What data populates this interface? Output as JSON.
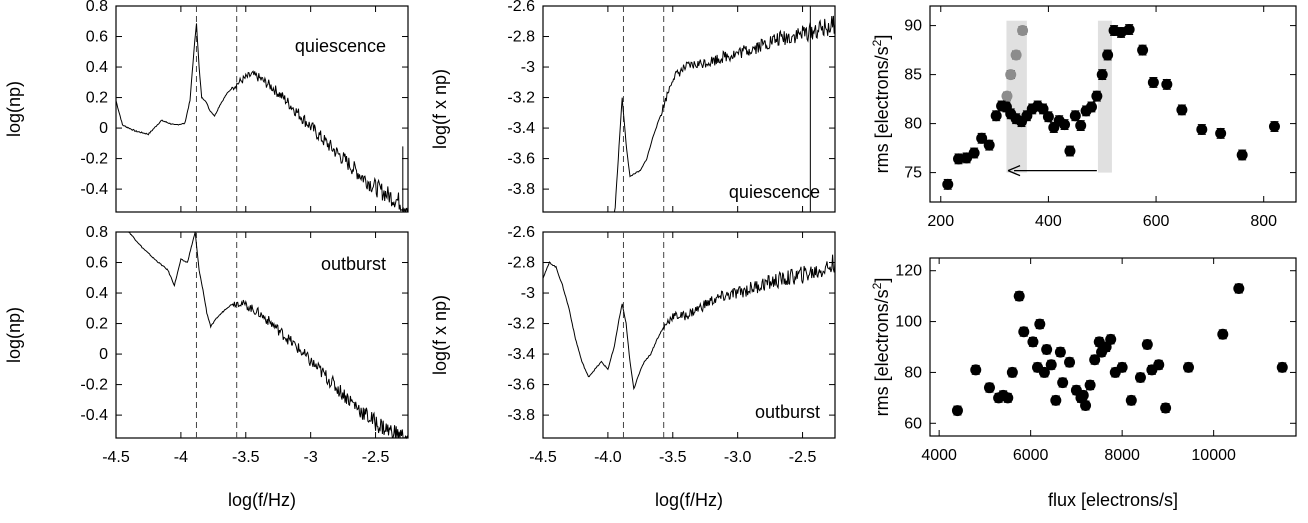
{
  "panels": {
    "a": {
      "label": "quiescence"
    },
    "b": {
      "label": "outburst"
    },
    "c": {
      "label": "quiescence"
    },
    "d": {
      "label": "outburst"
    }
  },
  "axes": {
    "left_ylabel_top": "log(np)",
    "left_ylabel_bottom": "log(np)",
    "left_xlabel": "log(f/Hz)",
    "mid_ylabel_top": "log(f x np)",
    "mid_ylabel_bottom": "log(f x np)",
    "mid_xlabel": "log(f/Hz)",
    "right_ylabel_top": "rms [electrons/s",
    "right_ylabel_bottom": "rms [electrons/s",
    "right_ylabel_sup": "2",
    "right_ylabel_close": "]",
    "right_xlabel": "flux [electrons/s]"
  },
  "ticks": {
    "left_x": [
      "-4.5",
      "-4",
      "-3.5",
      "-3",
      "-2.5"
    ],
    "left_y_top": [
      "0.8",
      "0.6",
      "0.4",
      "0.2",
      "0",
      "-0.2",
      "-0.4"
    ],
    "left_y_bottom": [
      "0.8",
      "0.6",
      "0.4",
      "0.2",
      "0",
      "-0.2",
      "-0.4"
    ],
    "mid_x": [
      "-4.5",
      "-4.0",
      "-3.5",
      "-3.0",
      "-2.5"
    ],
    "mid_y_top": [
      "-2.6",
      "-2.8",
      "-3",
      "-3.2",
      "-3.4",
      "-3.6",
      "-3.8"
    ],
    "mid_y_bottom": [
      "-2.6",
      "-2.8",
      "-3",
      "-3.2",
      "-3.4",
      "-3.6",
      "-3.8"
    ],
    "right_top_x": [
      "200",
      "400",
      "600",
      "800"
    ],
    "right_top_y": [
      "75",
      "80",
      "85",
      "90"
    ],
    "right_bottom_x": [
      "4000",
      "6000",
      "8000",
      "10000"
    ],
    "right_bottom_y": [
      "60",
      "80",
      "100",
      "120"
    ]
  },
  "chart_data": [
    {
      "type": "line",
      "panel": "left-top",
      "xlim": [
        -4.5,
        -2.25
      ],
      "ylim": [
        -0.55,
        0.8
      ],
      "vlines": [
        -3.88,
        -3.57
      ],
      "points": [
        [
          -4.5,
          0.18
        ],
        [
          -4.45,
          0.02
        ],
        [
          -4.35,
          -0.02
        ],
        [
          -4.25,
          -0.04
        ],
        [
          -4.15,
          0.05
        ],
        [
          -4.05,
          0.02
        ],
        [
          -3.97,
          0.03
        ],
        [
          -3.93,
          0.18
        ],
        [
          -3.9,
          0.5
        ],
        [
          -3.88,
          0.69
        ],
        [
          -3.86,
          0.4
        ],
        [
          -3.84,
          0.2
        ],
        [
          -3.81,
          0.18
        ],
        [
          -3.78,
          0.12
        ],
        [
          -3.74,
          0.08
        ],
        [
          -3.7,
          0.15
        ],
        [
          -3.65,
          0.22
        ],
        [
          -3.6,
          0.27
        ],
        [
          -3.55,
          0.3
        ],
        [
          -3.5,
          0.33
        ],
        [
          -3.45,
          0.35
        ],
        [
          -3.4,
          0.33
        ],
        [
          -3.3,
          0.27
        ],
        [
          -3.2,
          0.19
        ],
        [
          -3.1,
          0.1
        ],
        [
          -3.0,
          0.01
        ],
        [
          -2.9,
          -0.08
        ],
        [
          -2.8,
          -0.16
        ],
        [
          -2.7,
          -0.24
        ],
        [
          -2.6,
          -0.32
        ],
        [
          -2.5,
          -0.39
        ],
        [
          -2.4,
          -0.44
        ],
        [
          -2.3,
          -0.49
        ],
        [
          -2.25,
          -0.52
        ]
      ],
      "spikes": [
        [
          -2.29,
          -0.12
        ]
      ]
    },
    {
      "type": "line",
      "panel": "left-bottom",
      "xlim": [
        -4.5,
        -2.25
      ],
      "ylim": [
        -0.55,
        0.8
      ],
      "vlines": [
        -3.88,
        -3.57
      ],
      "points": [
        [
          -4.5,
          0.95
        ],
        [
          -4.4,
          0.8
        ],
        [
          -4.3,
          0.7
        ],
        [
          -4.2,
          0.62
        ],
        [
          -4.1,
          0.55
        ],
        [
          -4.05,
          0.45
        ],
        [
          -4.0,
          0.62
        ],
        [
          -3.95,
          0.6
        ],
        [
          -3.92,
          0.7
        ],
        [
          -3.89,
          0.8
        ],
        [
          -3.86,
          0.55
        ],
        [
          -3.83,
          0.42
        ],
        [
          -3.8,
          0.27
        ],
        [
          -3.77,
          0.18
        ],
        [
          -3.72,
          0.24
        ],
        [
          -3.65,
          0.3
        ],
        [
          -3.6,
          0.33
        ],
        [
          -3.55,
          0.34
        ],
        [
          -3.5,
          0.32
        ],
        [
          -3.4,
          0.27
        ],
        [
          -3.3,
          0.2
        ],
        [
          -3.2,
          0.12
        ],
        [
          -3.1,
          0.04
        ],
        [
          -3.0,
          -0.05
        ],
        [
          -2.9,
          -0.13
        ],
        [
          -2.8,
          -0.22
        ],
        [
          -2.7,
          -0.3
        ],
        [
          -2.6,
          -0.38
        ],
        [
          -2.5,
          -0.45
        ],
        [
          -2.4,
          -0.5
        ],
        [
          -2.3,
          -0.54
        ],
        [
          -2.25,
          -0.56
        ]
      ]
    },
    {
      "type": "line",
      "panel": "mid-top",
      "xlim": [
        -4.5,
        -2.25
      ],
      "ylim": [
        -3.95,
        -2.6
      ],
      "vlines": [
        -3.88,
        -3.57
      ],
      "points": [
        [
          -3.95,
          -4.0
        ],
        [
          -3.92,
          -3.6
        ],
        [
          -3.89,
          -3.2
        ],
        [
          -3.86,
          -3.5
        ],
        [
          -3.83,
          -3.72
        ],
        [
          -3.8,
          -3.7
        ],
        [
          -3.75,
          -3.68
        ],
        [
          -3.7,
          -3.6
        ],
        [
          -3.65,
          -3.45
        ],
        [
          -3.6,
          -3.33
        ],
        [
          -3.55,
          -3.2
        ],
        [
          -3.5,
          -3.07
        ],
        [
          -3.4,
          -3.0
        ],
        [
          -3.3,
          -2.98
        ],
        [
          -3.2,
          -2.96
        ],
        [
          -3.1,
          -2.93
        ],
        [
          -3.0,
          -2.91
        ],
        [
          -2.9,
          -2.88
        ],
        [
          -2.8,
          -2.85
        ],
        [
          -2.7,
          -2.82
        ],
        [
          -2.6,
          -2.8
        ],
        [
          -2.5,
          -2.78
        ],
        [
          -2.4,
          -2.76
        ],
        [
          -2.3,
          -2.74
        ],
        [
          -2.25,
          -2.72
        ]
      ],
      "spikes": [
        [
          -2.44,
          -2.6
        ]
      ]
    },
    {
      "type": "line",
      "panel": "mid-bottom",
      "xlim": [
        -4.5,
        -2.25
      ],
      "ylim": [
        -3.95,
        -2.6
      ],
      "vlines": [
        -3.88,
        -3.57
      ],
      "points": [
        [
          -4.5,
          -2.9
        ],
        [
          -4.45,
          -2.8
        ],
        [
          -4.4,
          -2.83
        ],
        [
          -4.35,
          -2.95
        ],
        [
          -4.3,
          -3.1
        ],
        [
          -4.25,
          -3.3
        ],
        [
          -4.2,
          -3.45
        ],
        [
          -4.15,
          -3.55
        ],
        [
          -4.1,
          -3.5
        ],
        [
          -4.05,
          -3.45
        ],
        [
          -4.0,
          -3.5
        ],
        [
          -3.95,
          -3.35
        ],
        [
          -3.92,
          -3.2
        ],
        [
          -3.89,
          -3.07
        ],
        [
          -3.86,
          -3.2
        ],
        [
          -3.83,
          -3.45
        ],
        [
          -3.8,
          -3.63
        ],
        [
          -3.77,
          -3.55
        ],
        [
          -3.72,
          -3.45
        ],
        [
          -3.67,
          -3.4
        ],
        [
          -3.62,
          -3.3
        ],
        [
          -3.55,
          -3.2
        ],
        [
          -3.5,
          -3.15
        ],
        [
          -3.4,
          -3.15
        ],
        [
          -3.3,
          -3.1
        ],
        [
          -3.2,
          -3.05
        ],
        [
          -3.1,
          -3.02
        ],
        [
          -3.0,
          -3.0
        ],
        [
          -2.9,
          -2.97
        ],
        [
          -2.8,
          -2.94
        ],
        [
          -2.7,
          -2.92
        ],
        [
          -2.6,
          -2.9
        ],
        [
          -2.5,
          -2.88
        ],
        [
          -2.4,
          -2.86
        ],
        [
          -2.3,
          -2.83
        ],
        [
          -2.25,
          -2.8
        ]
      ]
    },
    {
      "type": "scatter",
      "panel": "right-top",
      "xlim": [
        180,
        860
      ],
      "ylim": [
        72,
        92
      ],
      "shaded_x": [
        [
          322,
          360
        ],
        [
          492,
          518
        ]
      ],
      "arrow": {
        "from": [
          490,
          75.2
        ],
        "to": [
          325,
          75.2
        ]
      },
      "points": [
        [
          213,
          73.8
        ],
        [
          233,
          76.4
        ],
        [
          248,
          76.5
        ],
        [
          262,
          77.0
        ],
        [
          276,
          78.5
        ],
        [
          290,
          77.8
        ],
        [
          303,
          80.8
        ],
        [
          313,
          81.8
        ],
        [
          322,
          81.7
        ],
        [
          330,
          81.0
        ],
        [
          340,
          80.5
        ],
        [
          350,
          80.2
        ],
        [
          360,
          80.8
        ],
        [
          370,
          81.5
        ],
        [
          380,
          81.8
        ],
        [
          390,
          81.5
        ],
        [
          400,
          80.7
        ],
        [
          410,
          79.6
        ],
        [
          420,
          80.3
        ],
        [
          430,
          79.9
        ],
        [
          440,
          77.2
        ],
        [
          450,
          80.8
        ],
        [
          460,
          79.8
        ],
        [
          470,
          81.3
        ],
        [
          480,
          81.7
        ],
        [
          490,
          82.8
        ],
        [
          500,
          85.0
        ],
        [
          510,
          87.0
        ],
        [
          522,
          89.5
        ],
        [
          535,
          89.3
        ],
        [
          550,
          89.6
        ],
        [
          575,
          87.5
        ],
        [
          595,
          84.2
        ],
        [
          620,
          84.0
        ],
        [
          648,
          81.4
        ],
        [
          685,
          79.4
        ],
        [
          720,
          79.0
        ],
        [
          760,
          76.8
        ],
        [
          820,
          79.7
        ]
      ],
      "gray_points": [
        [
          323,
          82.8
        ],
        [
          330,
          85.0
        ],
        [
          340,
          87.0
        ],
        [
          352,
          89.5
        ]
      ]
    },
    {
      "type": "scatter",
      "panel": "right-bottom",
      "xlim": [
        3800,
        11800
      ],
      "ylim": [
        55,
        125
      ],
      "points": [
        [
          4400,
          65
        ],
        [
          4800,
          81
        ],
        [
          5100,
          74
        ],
        [
          5300,
          70
        ],
        [
          5400,
          71
        ],
        [
          5500,
          70
        ],
        [
          5600,
          80
        ],
        [
          5750,
          110
        ],
        [
          5850,
          96
        ],
        [
          6050,
          92
        ],
        [
          6150,
          82
        ],
        [
          6200,
          99
        ],
        [
          6300,
          80
        ],
        [
          6350,
          89
        ],
        [
          6450,
          83
        ],
        [
          6550,
          69
        ],
        [
          6650,
          88
        ],
        [
          6700,
          76
        ],
        [
          6850,
          84
        ],
        [
          7000,
          73
        ],
        [
          7100,
          70
        ],
        [
          7150,
          71
        ],
        [
          7200,
          67
        ],
        [
          7300,
          75
        ],
        [
          7400,
          85
        ],
        [
          7500,
          92
        ],
        [
          7550,
          88
        ],
        [
          7650,
          90
        ],
        [
          7750,
          93
        ],
        [
          7850,
          80
        ],
        [
          8000,
          82
        ],
        [
          8200,
          69
        ],
        [
          8400,
          78
        ],
        [
          8550,
          91
        ],
        [
          8650,
          81
        ],
        [
          8800,
          83
        ],
        [
          8950,
          66
        ],
        [
          9450,
          82
        ],
        [
          10200,
          95
        ],
        [
          10550,
          113
        ],
        [
          11500,
          82
        ]
      ]
    }
  ]
}
